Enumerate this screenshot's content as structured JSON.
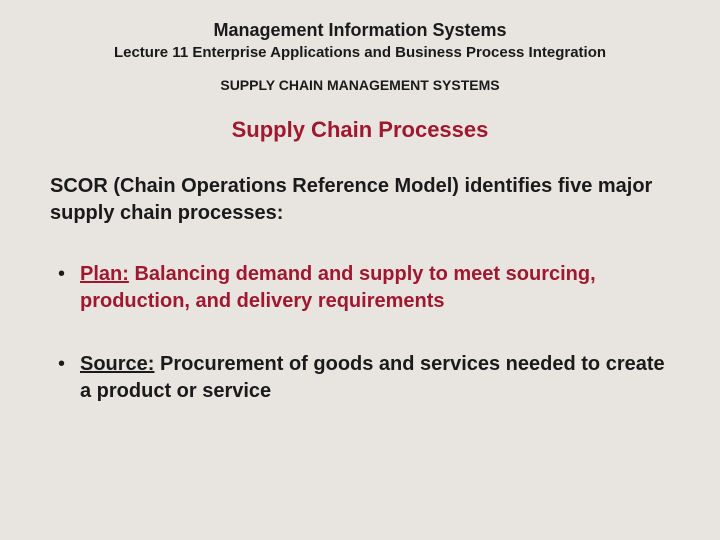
{
  "colors": {
    "background": "#e8e5e0",
    "text": "#1a1a1a",
    "accent": "#a01830"
  },
  "typography": {
    "font_family": "Arial",
    "course_title_size": 18,
    "lecture_title_size": 15,
    "section_title_size": 14,
    "slide_title_size": 22,
    "body_size": 20
  },
  "header": {
    "course_title": "Management Information Systems",
    "lecture_title": "Lecture 11 Enterprise Applications and Business Process Integration",
    "section_title": "SUPPLY CHAIN MANAGEMENT SYSTEMS",
    "slide_title": "Supply Chain Processes"
  },
  "intro_text": "SCOR (Chain Operations Reference Model) identifies five major supply chain processes:",
  "bullets": [
    {
      "term": "Plan:",
      "description": " Balancing demand and supply to meet sourcing, production, and delivery requirements",
      "color": "red"
    },
    {
      "term": "Source:",
      "description": " Procurement of goods and services needed to create a product or service",
      "color": "black"
    }
  ]
}
